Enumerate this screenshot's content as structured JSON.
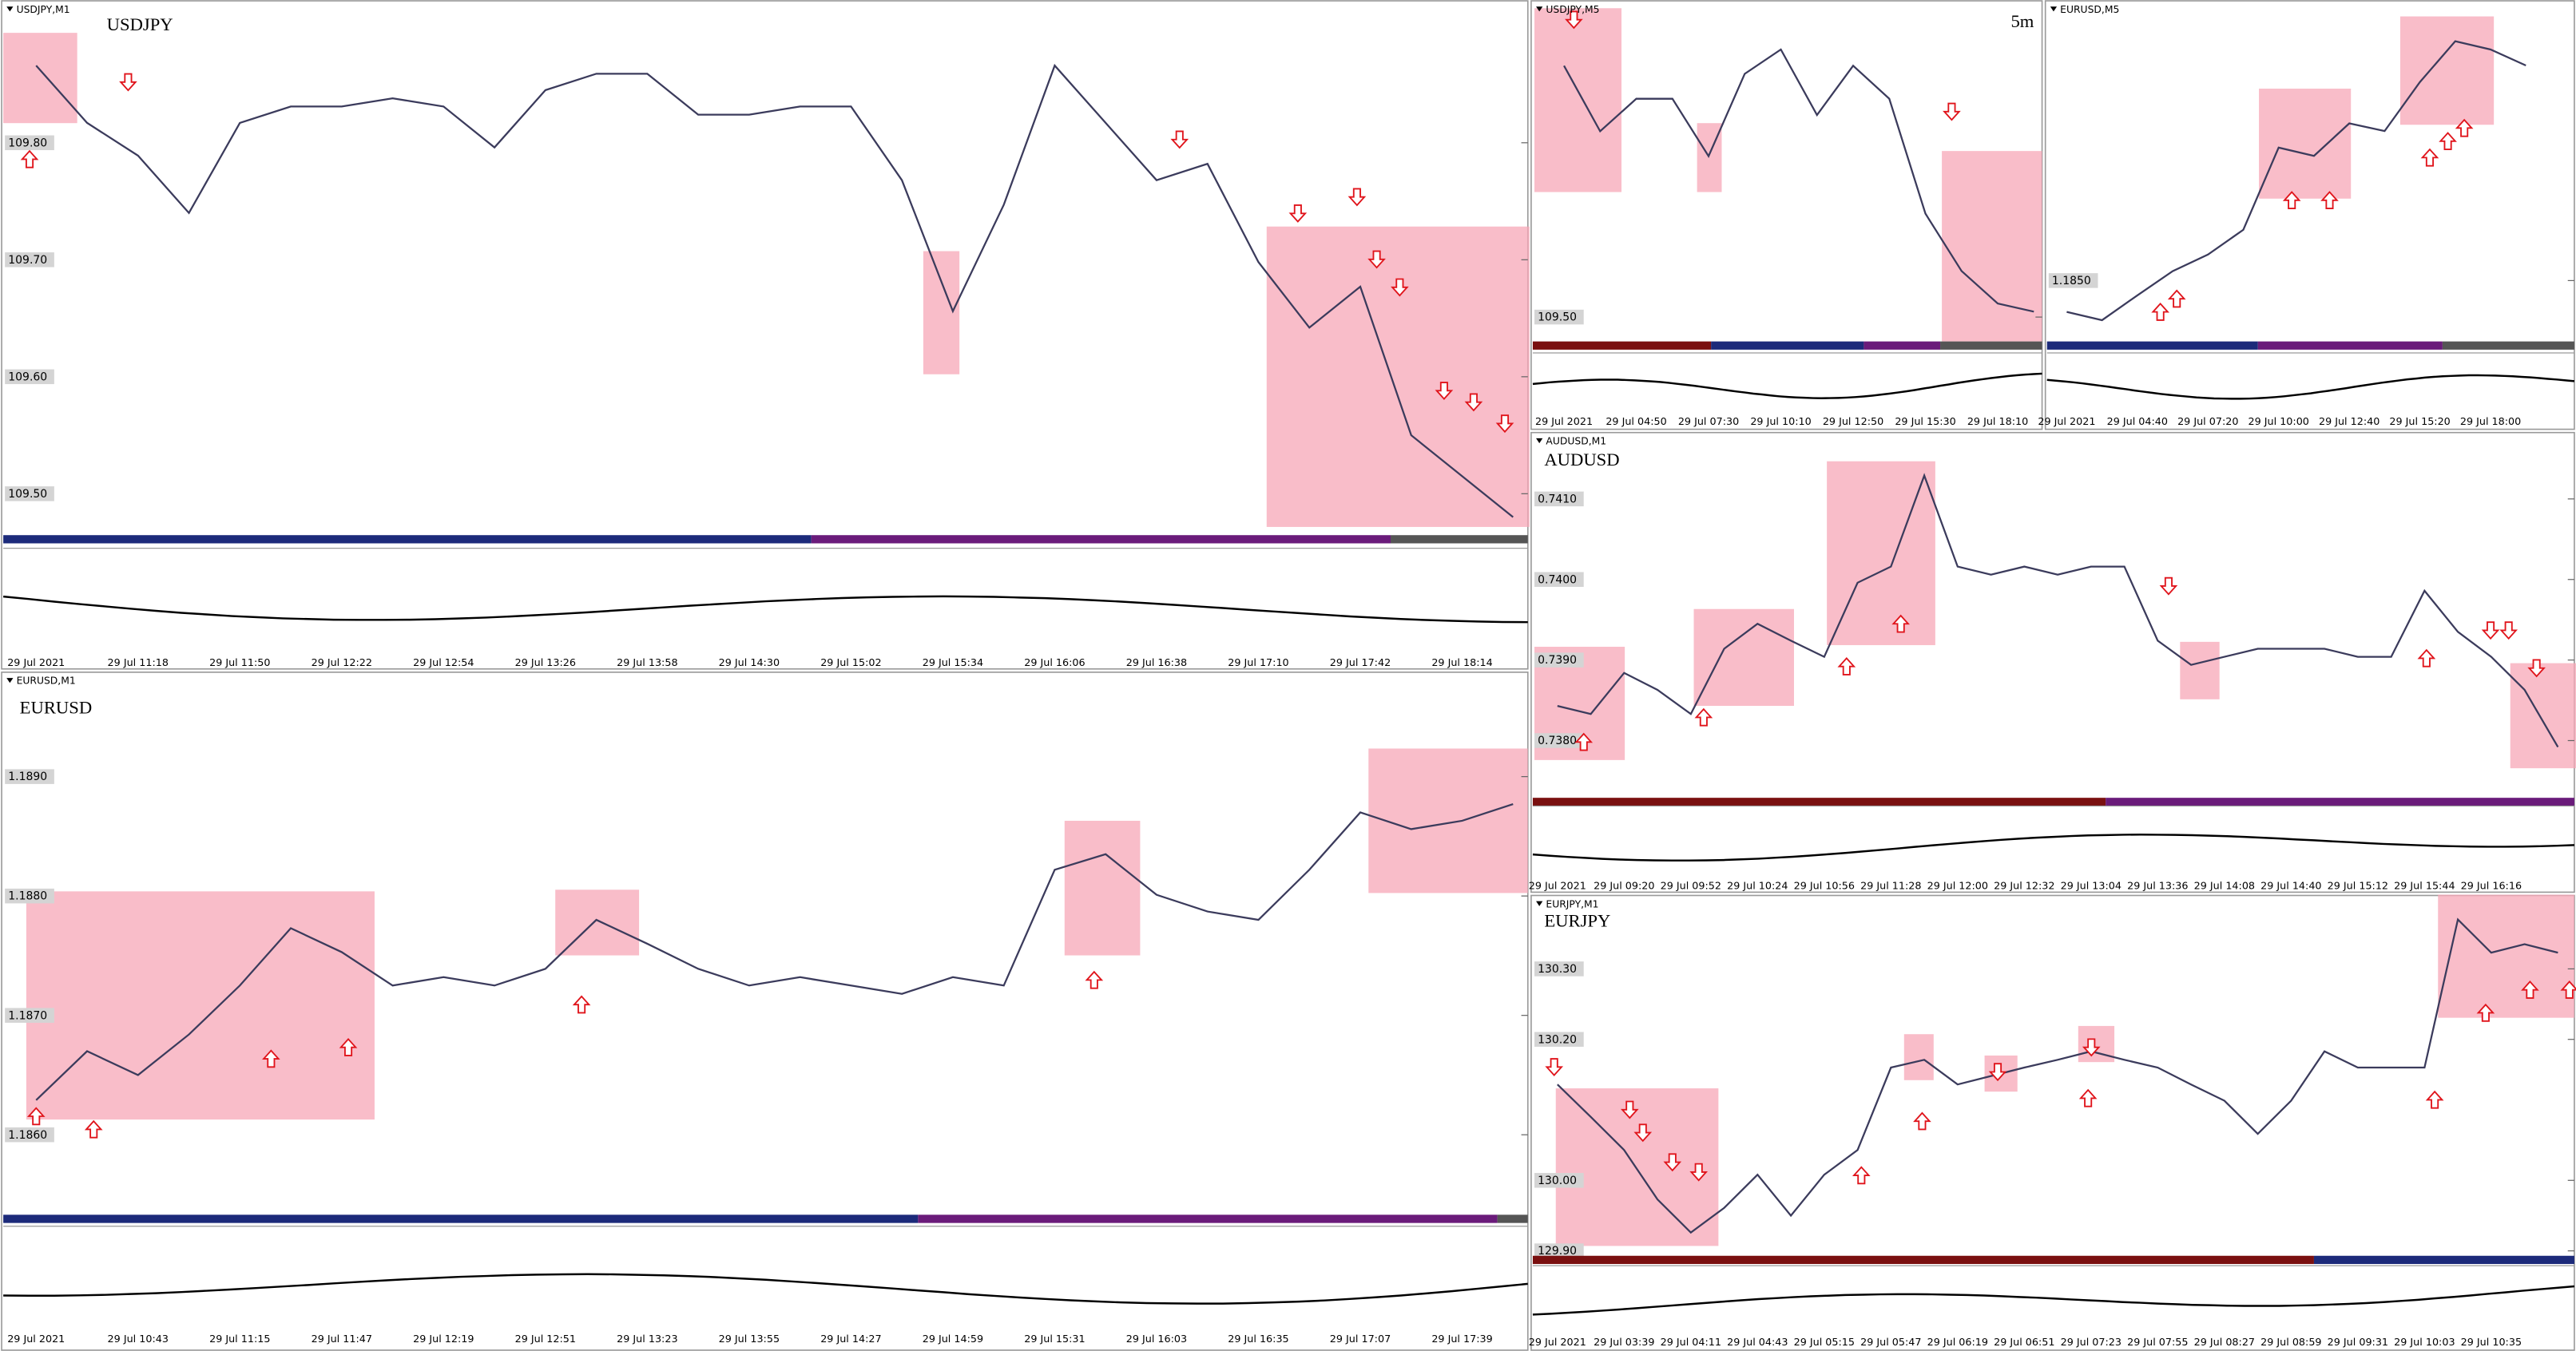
{
  "chart_data": [
    {
      "type": "line",
      "header": "USDJPY,M1",
      "title": "USDJPY",
      "color": "#3b3b5c",
      "categories": [
        "29 Jul 2021",
        null,
        "29 Jul 11:18",
        null,
        "29 Jul 11:50",
        null,
        "29 Jul 12:22",
        null,
        "29 Jul 12:54",
        null,
        "29 Jul 13:26",
        null,
        "29 Jul 13:58",
        null,
        "29 Jul 14:30",
        null,
        "29 Jul 15:02",
        null,
        "29 Jul 15:34",
        null,
        "29 Jul 16:06",
        null,
        "29 Jul 16:38",
        null,
        "29 Jul 17:10",
        null,
        "29 Jul 17:42",
        null,
        "29 Jul 18:14",
        null
      ],
      "values": [
        109.866,
        109.817,
        109.789,
        109.74,
        109.817,
        109.831,
        109.831,
        109.838,
        109.831,
        109.796,
        109.845,
        109.859,
        109.859,
        109.824,
        109.824,
        109.831,
        109.831,
        109.768,
        109.656,
        109.747,
        109.866,
        109.817,
        109.768,
        109.782,
        109.698,
        109.642,
        109.677,
        109.55,
        109.515,
        109.48
      ],
      "ylim": [
        109.466,
        109.908
      ],
      "yticks": [
        {
          "value": 109.8,
          "label": "109.80"
        },
        {
          "value": 109.7,
          "label": "109.70"
        },
        {
          "value": 109.6,
          "label": "109.60"
        },
        {
          "value": 109.5,
          "label": "109.50"
        }
      ]
    },
    {
      "type": "line",
      "header": "EURUSD,M1",
      "title": "EURUSD",
      "color": "#3b3b5c",
      "categories": [
        "29 Jul 2021",
        null,
        "29 Jul 10:43",
        null,
        "29 Jul 11:15",
        null,
        "29 Jul 11:47",
        null,
        "29 Jul 12:19",
        null,
        "29 Jul 12:51",
        null,
        "29 Jul 13:23",
        null,
        "29 Jul 13:55",
        null,
        "29 Jul 14:27",
        null,
        "29 Jul 14:59",
        null,
        "29 Jul 15:31",
        null,
        "29 Jul 16:03",
        null,
        "29 Jul 16:35",
        null,
        "29 Jul 17:07",
        null,
        "29 Jul 17:39",
        null
      ],
      "values": [
        1.18629,
        1.1867,
        1.1865,
        1.18684,
        1.18725,
        1.18773,
        1.18753,
        1.18725,
        1.18732,
        1.18725,
        1.18739,
        1.1878,
        1.1876,
        1.18739,
        1.18725,
        1.18732,
        1.18725,
        1.18718,
        1.18732,
        1.18725,
        1.18822,
        1.18835,
        1.18801,
        1.18787,
        1.1878,
        1.18822,
        1.1887,
        1.18856,
        1.18863,
        1.18877
      ],
      "ylim": [
        1.18533,
        1.18973
      ],
      "yticks": [
        {
          "value": 1.189,
          "label": "1.1890"
        },
        {
          "value": 1.188,
          "label": "1.1880"
        },
        {
          "value": 1.187,
          "label": "1.1870"
        },
        {
          "value": 1.186,
          "label": "1.1860"
        }
      ]
    },
    {
      "type": "line",
      "header": "USDJPY,M5",
      "title": "5m",
      "color": "#3b3b5c",
      "categories": [
        "29 Jul 2021",
        null,
        "29 Jul 04:50",
        null,
        "29 Jul 07:30",
        null,
        "29 Jul 10:10",
        null,
        "29 Jul 12:50",
        null,
        "29 Jul 15:30",
        null,
        "29 Jul 18:10",
        null
      ],
      "values": [
        109.964,
        109.843,
        109.903,
        109.903,
        109.797,
        109.949,
        109.994,
        109.873,
        109.964,
        109.903,
        109.691,
        109.585,
        109.525,
        109.51
      ],
      "ylim": [
        109.455,
        110.055
      ],
      "yticks": [
        {
          "value": 109.5,
          "label": "109.50"
        }
      ]
    },
    {
      "type": "line",
      "header": "EURUSD,M5",
      "color": "#3b3b5c",
      "categories": [
        "29 Jul 2021",
        null,
        "29 Jul 04:40",
        null,
        "29 Jul 07:20",
        null,
        "29 Jul 10:00",
        null,
        "29 Jul 12:40",
        null,
        "29 Jul 15:20",
        null,
        "29 Jul 18:00",
        null
      ],
      "values": [
        1.18447,
        1.18433,
        1.18475,
        1.18516,
        1.18544,
        1.18586,
        1.18725,
        1.18711,
        1.18766,
        1.18753,
        1.18836,
        1.18905,
        1.18891,
        1.18864
      ],
      "ylim": [
        1.18397,
        1.18947
      ],
      "yticks": [
        {
          "value": 1.185,
          "label": "1.1850"
        }
      ]
    },
    {
      "type": "line",
      "header": "AUDUSD,M1",
      "title": "AUDUSD",
      "color": "#3b3b5c",
      "categories": [
        "29 Jul 2021",
        null,
        "29 Jul 09:20",
        null,
        "29 Jul 09:52",
        null,
        "29 Jul 10:24",
        null,
        "29 Jul 10:56",
        null,
        "29 Jul 11:28",
        null,
        "29 Jul 12:00",
        null,
        "29 Jul 12:32",
        null,
        "29 Jul 13:04",
        null,
        "29 Jul 13:36",
        null,
        "29 Jul 14:08",
        null,
        "29 Jul 14:40",
        null,
        "29 Jul 15:12",
        null,
        "29 Jul 15:44",
        null,
        "29 Jul 16:16",
        null,
        null
      ],
      "values": [
        0.73843,
        0.73833,
        0.73884,
        0.73863,
        0.73833,
        0.73914,
        0.73945,
        0.73924,
        0.73904,
        0.73996,
        0.74016,
        0.74129,
        0.74016,
        0.74006,
        0.74016,
        0.74006,
        0.74016,
        0.74016,
        0.73924,
        0.73894,
        0.73904,
        0.73914,
        0.73914,
        0.73914,
        0.73904,
        0.73904,
        0.73986,
        0.73935,
        0.73904,
        0.73863,
        0.73792
      ],
      "ylim": [
        0.73731,
        0.74161
      ],
      "yticks": [
        {
          "value": 0.741,
          "label": "0.7410"
        },
        {
          "value": 0.74,
          "label": "0.7400"
        },
        {
          "value": 0.739,
          "label": "0.7390"
        },
        {
          "value": 0.738,
          "label": "0.7380"
        }
      ]
    },
    {
      "type": "line",
      "header": "EURJPY,M1",
      "title": "EURJPY",
      "color": "#3b3b5c",
      "categories": [
        "29 Jul 2021",
        null,
        "29 Jul 03:39",
        null,
        "29 Jul 04:11",
        null,
        "29 Jul 04:43",
        null,
        "29 Jul 05:15",
        null,
        "29 Jul 05:47",
        null,
        "29 Jul 06:19",
        null,
        "29 Jul 06:51",
        null,
        "29 Jul 07:23",
        null,
        "29 Jul 07:55",
        null,
        "29 Jul 08:27",
        null,
        "29 Jul 08:59",
        null,
        "29 Jul 09:31",
        null,
        "29 Jul 10:03",
        null,
        "29 Jul 10:35",
        null,
        null
      ],
      "values": [
        130.136,
        130.09,
        130.043,
        129.973,
        129.926,
        129.961,
        130.008,
        129.95,
        130.008,
        130.043,
        130.16,
        130.171,
        130.136,
        130.148,
        130.16,
        130.171,
        130.183,
        130.171,
        130.16,
        130.136,
        130.113,
        130.066,
        130.113,
        130.183,
        130.16,
        130.16,
        130.16,
        130.37,
        130.323,
        130.335,
        130.323
      ],
      "ylim": [
        129.893,
        130.382
      ],
      "yticks": [
        {
          "value": 130.3,
          "label": "130.30"
        },
        {
          "value": 130.2,
          "label": "130.20"
        },
        {
          "value": 130.0,
          "label": "130.00"
        },
        {
          "value": 129.9,
          "label": "129.90"
        }
      ]
    }
  ]
}
